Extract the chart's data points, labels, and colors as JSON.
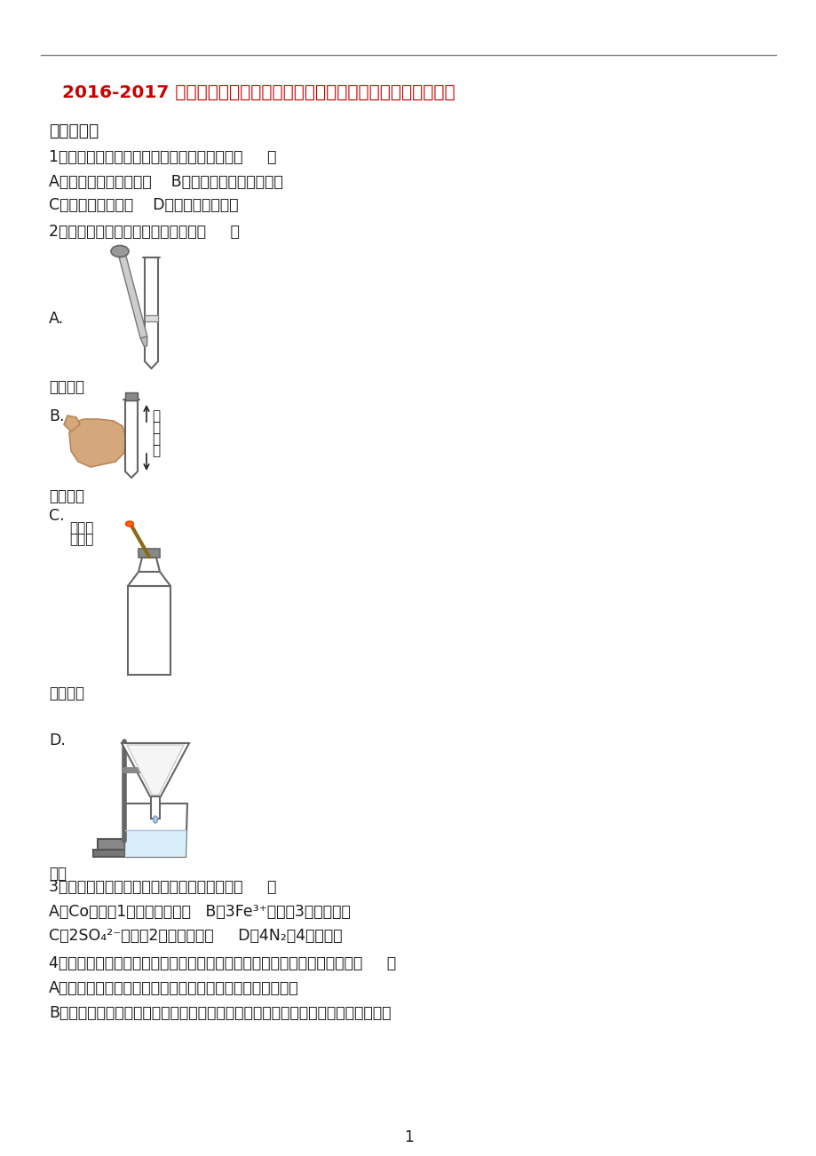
{
  "title": "2016-2017 学年湖北省黄冈市红安实验中学九年级（上）期中化学试卷",
  "title_color": "#CC0000",
  "bg_color": "#ffffff",
  "section1": "一、选择题",
  "q1": "1．下列变化过程中一定会发生化学变化的是（     ）",
  "q1_a": "A．物质由固态变成气态    B．向澄清的石灰水中吹气",
  "q1_b": "C．工业上制取氧气    D．把黄瓜切成细丝",
  "q2": "2．下列实验操作符合规范要求的是（     ）",
  "label_A": "A.",
  "label_dropper": "滴加液体",
  "label_B": "B.",
  "label_shake": "振荡试管",
  "label_C": "C.",
  "label_oxygen": "氧气验满",
  "label_D": "D.",
  "label_filter": "过滤",
  "q3": "3．下列化学用语与其所表达的意义一致的是（     ）",
  "q3_a": "A．Co－－－1个一氧化碳分子   B．3Fe³⁺－－－3个亚铁离子",
  "q3_b": "C．2SO₄²⁻－－－2个硫酸根离子     D．4N₂－4个氮原子",
  "q4": "4．推理是学习化学的一种重要的方法，下列推理得出的相关结论合理的是（     ）",
  "q4_a": "A．阳离子一定带正电荷，所以带正电荷的粒子一定是阳离子",
  "q4_b": "B．化合物是由不同种元素组成的纯净物，所以只含一种元素的物质一定不是化合物",
  "page_num": "1",
  "line_color": "#555555",
  "text_color": "#1a1a1a",
  "label_wood1": "带火星",
  "label_wood2": "的木条",
  "shake_up": "振",
  "shake_荡": "荡",
  "shake_方": "方",
  "shake_向": "向"
}
